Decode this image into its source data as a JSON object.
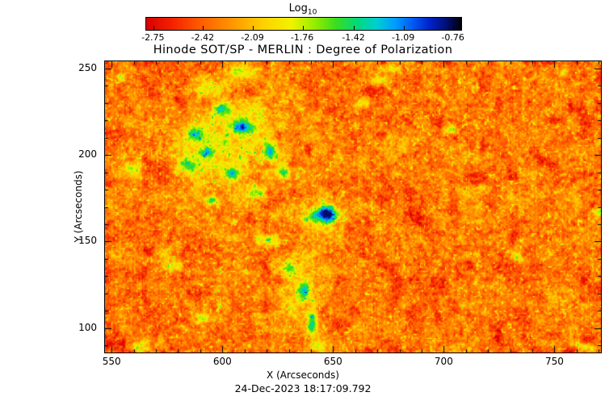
{
  "chart_data": {
    "type": "heatmap",
    "title": "Hinode SOT/SP - MERLIN : Degree of Polarization",
    "xlabel": "X (Arcseconds)",
    "ylabel": "Y (Arcseconds)",
    "timestamp": "24-Dec-2023 18:17:09.792",
    "colorbar": {
      "title_main": "Log",
      "title_sub": "10",
      "tick_labels": [
        "-2.75",
        "-2.42",
        "-2.09",
        "-1.76",
        "-1.42",
        "-1.09",
        "-0.76"
      ],
      "tick_values": [
        -2.75,
        -2.42,
        -2.09,
        -1.76,
        -1.42,
        -1.09,
        -0.76
      ]
    },
    "x_range": [
      547,
      771
    ],
    "y_range": [
      86,
      254
    ],
    "x_ticks": [
      550,
      600,
      650,
      700,
      750
    ],
    "y_ticks": [
      100,
      150,
      200,
      250
    ],
    "minor_tick_step": 10,
    "value_label": "Log10 Degree of Polarization",
    "value_range": [
      -2.8,
      -0.71
    ],
    "value_clamp": [
      -2.79,
      -0.8
    ],
    "background_level": -2.33,
    "colormap_stops": [
      [
        0.0,
        "#d80000"
      ],
      [
        0.08,
        "#f32000"
      ],
      [
        0.17,
        "#ff5a00"
      ],
      [
        0.27,
        "#ff9400"
      ],
      [
        0.37,
        "#ffd000"
      ],
      [
        0.46,
        "#f2f200"
      ],
      [
        0.53,
        "#9cee00"
      ],
      [
        0.6,
        "#3ddd1e"
      ],
      [
        0.67,
        "#00d97a"
      ],
      [
        0.73,
        "#00cfd0"
      ],
      [
        0.79,
        "#009cff"
      ],
      [
        0.85,
        "#0055f0"
      ],
      [
        0.9,
        "#0022c8"
      ],
      [
        0.95,
        "#000f7a"
      ],
      [
        1.0,
        "#000005"
      ]
    ],
    "noise": {
      "octaves": [
        {
          "scale": 2.0,
          "amp": 0.16,
          "seed": 11
        },
        {
          "scale": 4.5,
          "amp": 0.15,
          "seed": 23
        },
        {
          "scale": 10,
          "amp": 0.11,
          "seed": 37
        },
        {
          "scale": 24,
          "amp": 0.09,
          "seed": 51
        }
      ],
      "fleck": {
        "scale": 2.6,
        "threshold": 0.78,
        "gain": 2.4,
        "seed": 67
      },
      "shade": {
        "scale": 18,
        "threshold": 0.33,
        "gain": 0.8,
        "seed": 83
      },
      "column_amp": 0.07
    },
    "feature_format": [
      "x",
      "y",
      "rx",
      "ry",
      "amplitude"
    ],
    "features": [
      [
        647,
        166,
        5.0,
        4.5,
        1.2
      ],
      [
        647,
        166,
        9.5,
        8.5,
        0.6
      ],
      [
        638,
        163,
        3,
        3,
        0.45
      ],
      [
        603,
        200,
        26,
        24,
        0.45
      ],
      [
        612,
        222,
        12,
        10,
        0.3
      ],
      [
        592.6,
        201,
        3.5,
        3.5,
        0.85
      ],
      [
        609,
        215.8,
        4,
        4,
        0.95
      ],
      [
        604.6,
        189.3,
        3,
        3,
        0.8
      ],
      [
        616.3,
        178.6,
        3.5,
        3.5,
        0.8
      ],
      [
        595.2,
        174,
        3,
        3,
        0.7
      ],
      [
        621.1,
        202.4,
        3,
        5,
        0.85
      ],
      [
        628,
        189.8,
        3,
        3,
        0.8
      ],
      [
        587.9,
        212.1,
        4,
        4,
        0.8
      ],
      [
        599.9,
        226.5,
        4,
        4,
        0.7
      ],
      [
        584.2,
        194,
        4,
        4,
        0.6
      ],
      [
        609,
        247,
        8,
        5,
        0.45
      ],
      [
        592.6,
        238.2,
        6,
        5,
        0.5
      ],
      [
        634,
        120,
        9,
        20,
        0.3
      ],
      [
        621.1,
        150.7,
        5,
        4,
        0.7
      ],
      [
        630.2,
        134.4,
        4,
        4,
        0.6
      ],
      [
        637.1,
        120.9,
        3,
        5,
        0.8
      ],
      [
        640.4,
        103.3,
        2.5,
        7,
        0.95
      ],
      [
        644,
        90.2,
        4,
        3,
        0.6
      ],
      [
        560,
        192,
        3.5,
        3.5,
        0.45
      ],
      [
        548.8,
        170.7,
        2.5,
        3,
        0.45
      ],
      [
        578,
        135.8,
        4,
        4,
        0.5
      ],
      [
        590.8,
        105.6,
        3.5,
        3.5,
        0.45
      ],
      [
        563.4,
        90.3,
        4,
        4,
        0.45
      ],
      [
        663,
        229.8,
        3.5,
        3.5,
        0.45
      ],
      [
        671,
        242.8,
        5,
        3,
        0.4
      ],
      [
        678.3,
        249.3,
        4,
        2.5,
        0.35
      ],
      [
        702.8,
        214,
        2.5,
        2.5,
        0.85
      ],
      [
        718.5,
        181.4,
        2.5,
        2.5,
        0.45
      ],
      [
        733.1,
        140.5,
        2.5,
        2.5,
        0.4
      ],
      [
        769.9,
        167.5,
        3,
        2,
        0.6
      ],
      [
        764.1,
        89.3,
        5,
        2.5,
        0.6
      ],
      [
        755,
        246.5,
        2.5,
        2.5,
        0.4
      ],
      [
        553.6,
        244.7,
        3,
        3,
        0.4
      ]
    ]
  }
}
